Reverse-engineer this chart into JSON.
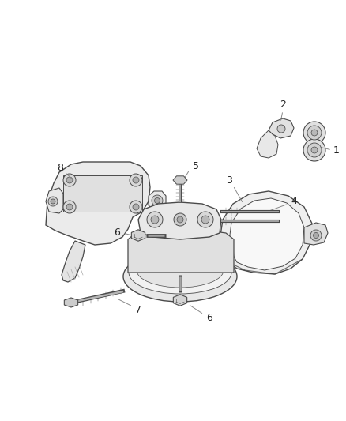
{
  "background_color": "#ffffff",
  "fig_width": 4.38,
  "fig_height": 5.33,
  "dpi": 100,
  "line_color": "#4a4a4a",
  "fill_color": "#f0f0f0",
  "fill_color2": "#e0e0e0",
  "fill_color3": "#d4d4d4",
  "label_color": "#222222",
  "leader_color": "#888888"
}
